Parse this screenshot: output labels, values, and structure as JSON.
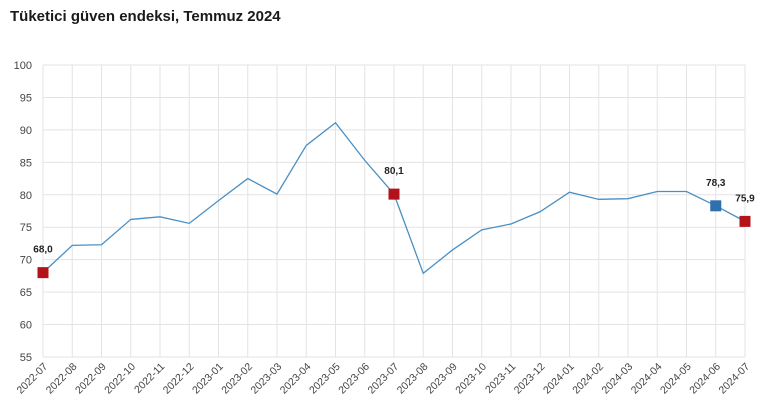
{
  "chart_data": {
    "type": "line",
    "title": "Tüketici güven endeksi, Temmuz 2024",
    "xlabel": "",
    "ylabel": "",
    "ylim": [
      55,
      100
    ],
    "yticks": [
      55,
      60,
      65,
      70,
      75,
      80,
      85,
      90,
      95,
      100
    ],
    "grid": true,
    "categories": [
      "2022-07",
      "2022-08",
      "2022-09",
      "2022-10",
      "2022-11",
      "2022-12",
      "2023-01",
      "2023-02",
      "2023-03",
      "2023-04",
      "2023-05",
      "2023-06",
      "2023-07",
      "2023-08",
      "2023-09",
      "2023-10",
      "2023-11",
      "2023-12",
      "2024-01",
      "2024-02",
      "2024-03",
      "2024-04",
      "2024-05",
      "2024-06",
      "2024-07"
    ],
    "series": [
      {
        "values": [
          68.0,
          72.2,
          72.3,
          76.2,
          76.6,
          75.6,
          79.1,
          82.5,
          80.1,
          87.6,
          91.1,
          85.3,
          80.1,
          67.9,
          71.5,
          74.6,
          75.5,
          77.4,
          80.4,
          79.3,
          79.4,
          80.5,
          80.5,
          78.3,
          75.9
        ],
        "color": "#4a90c4"
      }
    ],
    "highlights": [
      {
        "index": 0,
        "label": "68,0",
        "color": "#b3121b"
      },
      {
        "index": 12,
        "label": "80,1",
        "color": "#b3121b"
      },
      {
        "index": 23,
        "label": "78,3",
        "color": "#2f6fae"
      },
      {
        "index": 24,
        "label": "75,9",
        "color": "#b3121b"
      }
    ]
  }
}
